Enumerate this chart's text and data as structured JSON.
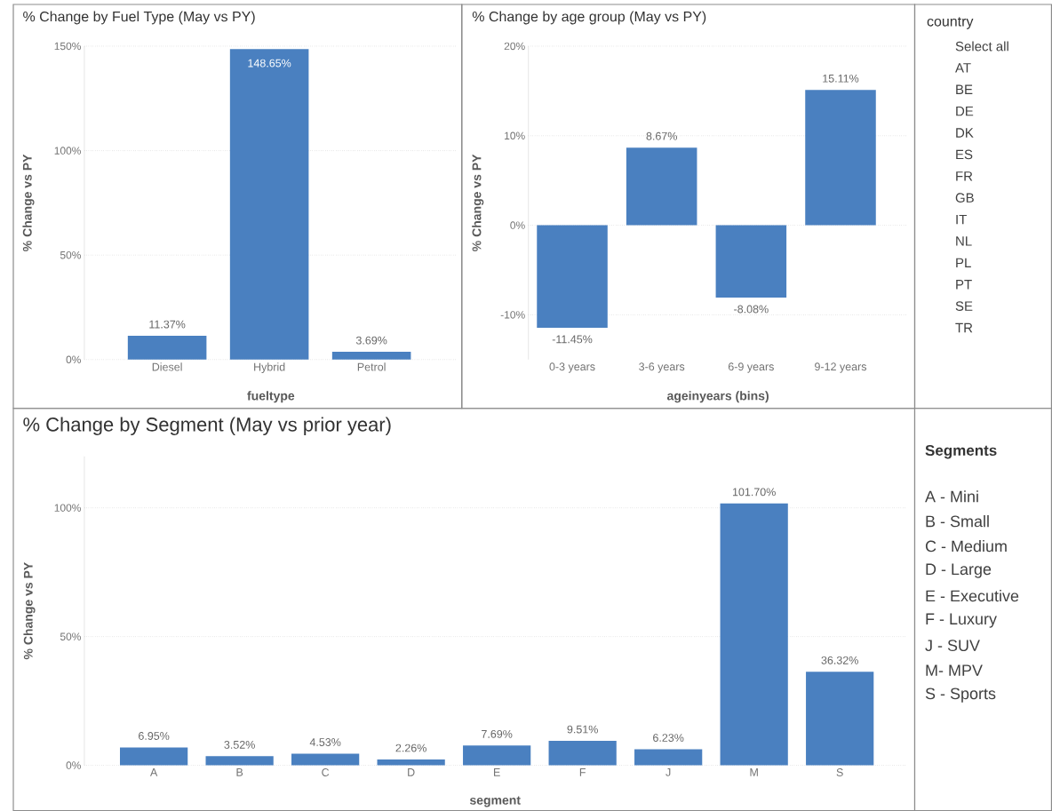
{
  "chart_data": [
    {
      "type": "bar",
      "title": "% Change by Fuel Type (May vs PY)",
      "xlabel": "fueltype",
      "ylabel": "% Change vs PY",
      "categories": [
        "Diesel",
        "Hybrid",
        "Petrol"
      ],
      "values": [
        11.37,
        148.65,
        3.69
      ],
      "value_labels": [
        "11.37%",
        "148.65%",
        "3.69%"
      ],
      "color": "#4a80c0",
      "ylim": [
        0,
        150
      ],
      "yticks": [
        {
          "value": 0,
          "label": "0%"
        },
        {
          "value": 50,
          "label": "50%"
        },
        {
          "value": 100,
          "label": "100%"
        },
        {
          "value": 150,
          "label": "150%"
        }
      ],
      "grid": "y"
    },
    {
      "type": "bar",
      "title": "% Change by age group (May vs PY)",
      "xlabel": "ageinyears (bins)",
      "ylabel": "% Change vs PY",
      "categories": [
        "0-3 years",
        "3-6 years",
        "6-9 years",
        "9-12 years"
      ],
      "values": [
        -11.45,
        8.67,
        -8.08,
        15.11
      ],
      "value_labels": [
        "-11.45%",
        "8.67%",
        "-8.08%",
        "15.11%"
      ],
      "color": "#4a80c0",
      "ylim": [
        -15,
        20
      ],
      "yticks": [
        {
          "value": -10,
          "label": "-10%"
        },
        {
          "value": 0,
          "label": "0%"
        },
        {
          "value": 10,
          "label": "10%"
        },
        {
          "value": 20,
          "label": "20%"
        }
      ],
      "grid": "y"
    },
    {
      "type": "bar",
      "title": "% Change by Segment (May vs prior year)",
      "xlabel": "segment",
      "ylabel": "% Change vs PY",
      "categories": [
        "A",
        "B",
        "C",
        "D",
        "E",
        "F",
        "J",
        "M",
        "S"
      ],
      "values": [
        6.95,
        3.52,
        4.53,
        2.26,
        7.69,
        9.51,
        6.23,
        101.7,
        36.32
      ],
      "value_labels": [
        "6.95%",
        "3.52%",
        "4.53%",
        "2.26%",
        "7.69%",
        "9.51%",
        "6.23%",
        "101.70%",
        "36.32%"
      ],
      "color": "#4a80c0",
      "ylim": [
        0,
        120
      ],
      "yticks": [
        {
          "value": 0,
          "label": "0%"
        },
        {
          "value": 50,
          "label": "50%"
        },
        {
          "value": 100,
          "label": "100%"
        }
      ],
      "grid": "y"
    },
    {
      "type": "other",
      "title": "country",
      "annotations": [
        "Select all",
        "AT",
        "BE",
        "DE",
        "DK",
        "ES",
        "FR",
        "GB",
        "IT",
        "NL",
        "PL",
        "PT",
        "SE",
        "TR"
      ]
    },
    {
      "type": "other",
      "title": "Segments",
      "annotations": [
        "A - Mini",
        "B - Small",
        "C - Medium",
        "D - Large",
        "E - Executive",
        "F - Luxury",
        "J - SUV",
        "M- MPV",
        "S - Sports"
      ]
    }
  ]
}
